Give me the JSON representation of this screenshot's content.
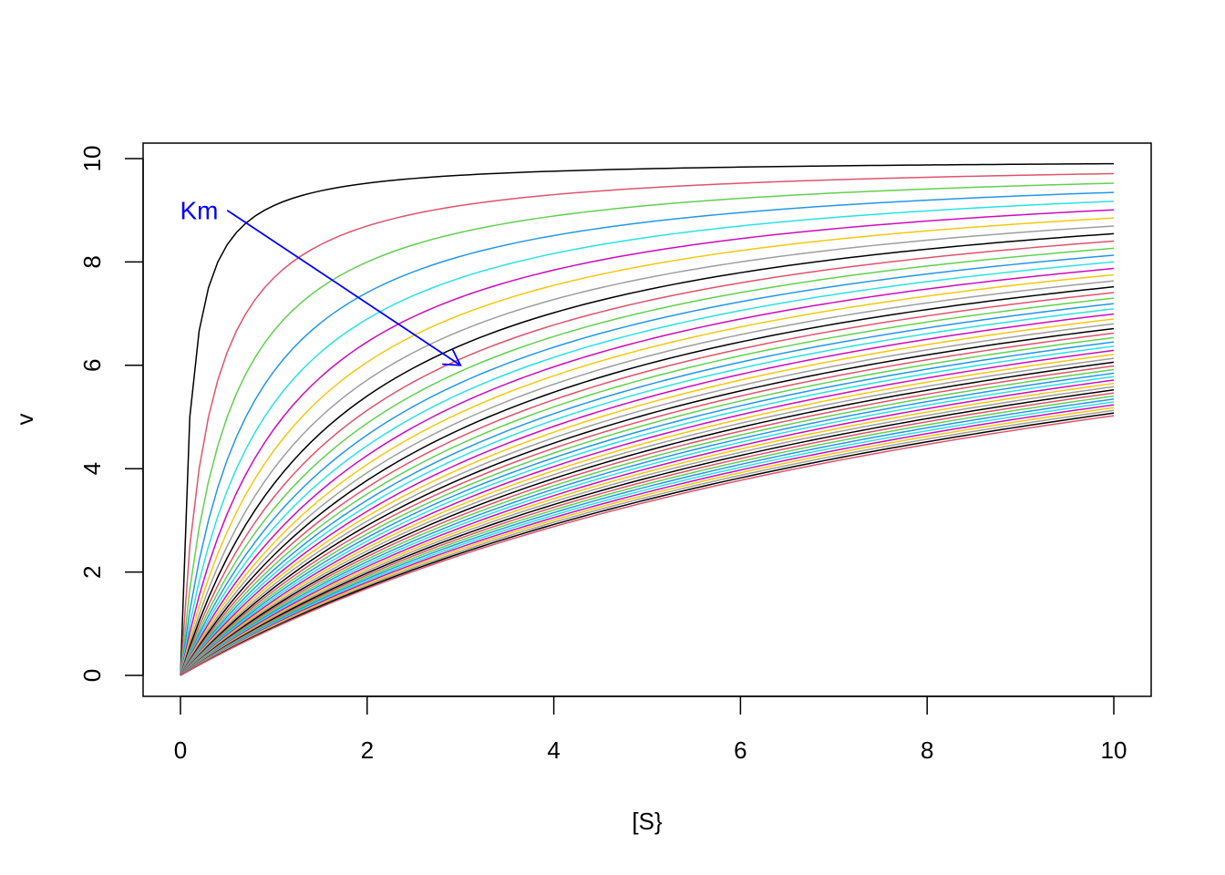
{
  "chart_data": {
    "type": "line",
    "title": "",
    "xlabel": "[S}",
    "ylabel": "v",
    "xlim": [
      0,
      10
    ],
    "ylim": [
      0,
      10
    ],
    "x_ticks": [
      "0",
      "2",
      "4",
      "6",
      "8",
      "10"
    ],
    "y_ticks": [
      "0",
      "2",
      "4",
      "6",
      "8",
      "10"
    ],
    "grid": false,
    "model": "v = Vmax*S/(Km+S)",
    "vmax": 10,
    "km": [
      0.1,
      0.3,
      0.5,
      0.7,
      0.9,
      1.1,
      1.3,
      1.5,
      1.7,
      1.9,
      2.1,
      2.3,
      2.5,
      2.7,
      2.9,
      3.1,
      3.3,
      3.5,
      3.7,
      3.9,
      4.1,
      4.3,
      4.5,
      4.7,
      4.9,
      5.1,
      5.3,
      5.5,
      5.7,
      5.9,
      6.1,
      6.3,
      6.5,
      6.7,
      6.9,
      7.1,
      7.3,
      7.5,
      7.7,
      7.9,
      8.1,
      8.3,
      8.5,
      8.7,
      8.9,
      9.1,
      9.3,
      9.5,
      9.7,
      9.9
    ],
    "s_range": [
      0,
      10
    ],
    "s_step": 0.1,
    "palette": [
      "#000000",
      "#DF536B",
      "#61D04F",
      "#2297E6",
      "#28E2E5",
      "#CD0BBC",
      "#F5C710",
      "#9E9E9E"
    ],
    "annotation": {
      "text": "Km",
      "color": "#0000FF",
      "text_at": [
        0.2,
        9.0
      ],
      "arrow_from": [
        0.5,
        9.0
      ],
      "arrow_to": [
        3.0,
        6.0
      ]
    }
  }
}
